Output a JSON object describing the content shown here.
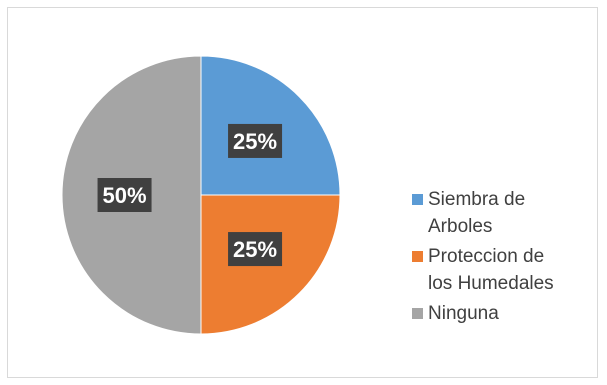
{
  "chart_data": {
    "type": "pie",
    "title": "",
    "categories": [
      "Siembra de\nArboles",
      "Proteccion de\nlos Humedales",
      "Ninguna"
    ],
    "values": [
      25,
      25,
      50
    ],
    "data_labels": [
      "25%",
      "25%",
      "50%"
    ],
    "colors": [
      "#5b9bd5",
      "#ed7d31",
      "#a5a5a5"
    ],
    "legend_position": "right",
    "start_angle": "12 o'clock",
    "direction": "clockwise"
  }
}
